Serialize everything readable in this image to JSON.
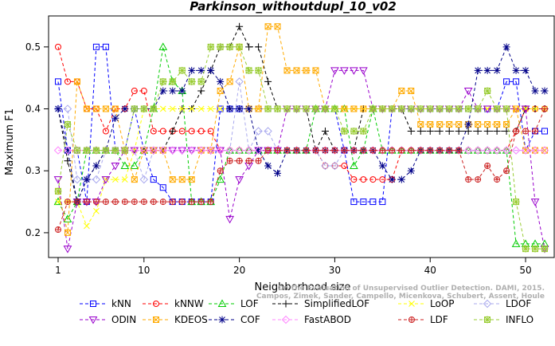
{
  "chart_data": {
    "type": "line",
    "title": "Parkinson_withoutdupl_10_v02",
    "xlabel": "Neighborhood size",
    "ylabel": "Maximum F1",
    "xlim": [
      0,
      53
    ],
    "ylim": [
      0.16,
      0.55
    ],
    "xticks": [
      1,
      10,
      20,
      30,
      40,
      50
    ],
    "yticks": [
      0.2,
      0.3,
      0.4,
      0.5
    ],
    "legend_position": "bottom",
    "watermark": [
      "Campos, Zimek, Sander, Campello, Micenkova, Schubert, Assent, Houle",
      "On the Evaluation of Unsupervised Outlier Detection. DAMI, 2015."
    ],
    "series": [
      {
        "name": "kNN",
        "color": "#0000ff",
        "marker": "square",
        "values": [
          0.444,
          0.333,
          0.333,
          0.25,
          0.5,
          0.5,
          0.333,
          0.333,
          0.4,
          0.333,
          0.286,
          0.273,
          0.25,
          0.25,
          0.25,
          0.25,
          0.25,
          0.4,
          0.4,
          0.4,
          0.4,
          0.4,
          0.4,
          0.4,
          0.4,
          0.4,
          0.4,
          0.4,
          0.4,
          0.4,
          0.333,
          0.25,
          0.25,
          0.25,
          0.25,
          0.4,
          0.4,
          0.4,
          0.4,
          0.4,
          0.4,
          0.4,
          0.4,
          0.4,
          0.4,
          0.4,
          0.4,
          0.444,
          0.444,
          0.333,
          0.364,
          0.364
        ]
      },
      {
        "name": "kNNW",
        "color": "#ff0000",
        "marker": "circle",
        "values": [
          0.5,
          0.444,
          0.444,
          0.4,
          0.4,
          0.364,
          0.4,
          0.4,
          0.429,
          0.429,
          0.364,
          0.364,
          0.364,
          0.364,
          0.364,
          0.364,
          0.364,
          0.333,
          0.333,
          0.333,
          0.333,
          0.333,
          0.333,
          0.333,
          0.333,
          0.333,
          0.333,
          0.333,
          0.308,
          0.308,
          0.308,
          0.286,
          0.286,
          0.286,
          0.286,
          0.286,
          0.333,
          0.333,
          0.333,
          0.333,
          0.333,
          0.333,
          0.333,
          0.333,
          0.333,
          0.333,
          0.333,
          0.333,
          0.364,
          0.4,
          0.4,
          0.4
        ]
      },
      {
        "name": "LOF",
        "color": "#00cc00",
        "marker": "triangle",
        "values": [
          0.25,
          0.222,
          0.25,
          0.333,
          0.333,
          0.333,
          0.333,
          0.308,
          0.308,
          0.333,
          0.4,
          0.5,
          0.444,
          0.429,
          0.25,
          0.25,
          0.25,
          0.286,
          0.333,
          0.333,
          0.333,
          0.333,
          0.333,
          0.333,
          0.333,
          0.333,
          0.333,
          0.4,
          0.4,
          0.4,
          0.4,
          0.308,
          0.333,
          0.4,
          0.333,
          0.333,
          0.333,
          0.333,
          0.333,
          0.333,
          0.333,
          0.333,
          0.333,
          0.333,
          0.333,
          0.333,
          0.333,
          0.333,
          0.182,
          0.182,
          0.182,
          0.182
        ]
      },
      {
        "name": "SimplifiedLOF",
        "color": "#000000",
        "marker": "plus",
        "values": [
          0.4,
          0.316,
          0.25,
          0.286,
          0.308,
          0.333,
          0.333,
          0.333,
          0.333,
          0.333,
          0.333,
          0.333,
          0.364,
          0.4,
          0.4,
          0.429,
          0.462,
          0.5,
          0.5,
          0.533,
          0.5,
          0.5,
          0.444,
          0.4,
          0.4,
          0.4,
          0.4,
          0.333,
          0.364,
          0.333,
          0.333,
          0.333,
          0.4,
          0.4,
          0.4,
          0.4,
          0.4,
          0.364,
          0.364,
          0.364,
          0.364,
          0.364,
          0.364,
          0.364,
          0.364,
          0.364,
          0.364,
          0.364,
          0.364,
          0.4,
          0.4,
          0.4
        ]
      },
      {
        "name": "LoOP",
        "color": "#ffff00",
        "marker": "x",
        "values": [
          0.25,
          0.25,
          0.25,
          0.211,
          0.235,
          0.286,
          0.286,
          0.286,
          0.333,
          0.4,
          0.4,
          0.4,
          0.4,
          0.4,
          0.4,
          0.4,
          0.4,
          0.4,
          0.4,
          0.4,
          0.4,
          0.4,
          0.4,
          0.4,
          0.4,
          0.4,
          0.4,
          0.4,
          0.4,
          0.4,
          0.4,
          0.4,
          0.4,
          0.4,
          0.4,
          0.4,
          0.4,
          0.4,
          0.4,
          0.4,
          0.4,
          0.4,
          0.4,
          0.4,
          0.4,
          0.4,
          0.4,
          0.4,
          0.4,
          0.4,
          0.4,
          0.4
        ]
      },
      {
        "name": "LDOF",
        "color": "#aaaaee",
        "marker": "diamond",
        "values": [
          0.4,
          0.4,
          0.286,
          0.286,
          0.286,
          0.333,
          0.333,
          0.333,
          0.333,
          0.286,
          0.333,
          0.333,
          0.333,
          0.333,
          0.333,
          0.333,
          0.333,
          0.333,
          0.333,
          0.444,
          0.333,
          0.364,
          0.364,
          0.333,
          0.333,
          0.333,
          0.333,
          0.333,
          0.308,
          0.308,
          0.333,
          0.333,
          0.333,
          0.333,
          0.333,
          0.333,
          0.333,
          0.333,
          0.333,
          0.333,
          0.333,
          0.333,
          0.333,
          0.333,
          0.333,
          0.333,
          0.333,
          0.333,
          0.333,
          0.333,
          0.333,
          0.333
        ]
      },
      {
        "name": "ODIN",
        "color": "#9900cc",
        "marker": "triangle-down",
        "values": [
          0.286,
          0.174,
          0.25,
          0.25,
          0.25,
          0.286,
          0.308,
          0.333,
          0.333,
          0.333,
          0.333,
          0.333,
          0.333,
          0.333,
          0.333,
          0.333,
          0.333,
          0.333,
          0.222,
          0.286,
          0.308,
          0.333,
          0.333,
          0.333,
          0.4,
          0.4,
          0.4,
          0.4,
          0.4,
          0.462,
          0.462,
          0.462,
          0.462,
          0.4,
          0.4,
          0.4,
          0.4,
          0.4,
          0.4,
          0.4,
          0.4,
          0.4,
          0.4,
          0.429,
          0.4,
          0.4,
          0.4,
          0.4,
          0.4,
          0.4,
          0.25,
          0.174
        ]
      },
      {
        "name": "KDEOS",
        "color": "#ffaa00",
        "marker": "square-x",
        "values": [
          0.267,
          0.2,
          0.444,
          0.4,
          0.4,
          0.4,
          0.4,
          0.333,
          0.286,
          0.333,
          0.333,
          0.333,
          0.286,
          0.286,
          0.286,
          0.333,
          0.333,
          0.429,
          0.444,
          0.5,
          0.4,
          0.4,
          0.533,
          0.533,
          0.462,
          0.462,
          0.462,
          0.462,
          0.4,
          0.4,
          0.4,
          0.4,
          0.4,
          0.4,
          0.4,
          0.4,
          0.429,
          0.429,
          0.375,
          0.375,
          0.375,
          0.375,
          0.375,
          0.375,
          0.375,
          0.375,
          0.375,
          0.375,
          0.4,
          0.333,
          0.333,
          0.333
        ]
      },
      {
        "name": "COF",
        "color": "#000088",
        "marker": "asterisk",
        "values": [
          0.4,
          0.333,
          0.25,
          0.286,
          0.308,
          0.333,
          0.385,
          0.4,
          0.4,
          0.4,
          0.4,
          0.429,
          0.429,
          0.429,
          0.462,
          0.462,
          0.462,
          0.444,
          0.4,
          0.4,
          0.4,
          0.333,
          0.308,
          0.296,
          0.333,
          0.333,
          0.333,
          0.333,
          0.333,
          0.333,
          0.333,
          0.333,
          0.333,
          0.333,
          0.308,
          0.286,
          0.286,
          0.3,
          0.333,
          0.333,
          0.333,
          0.333,
          0.333,
          0.375,
          0.462,
          0.462,
          0.462,
          0.5,
          0.462,
          0.462,
          0.429,
          0.429
        ]
      },
      {
        "name": "FastABOD",
        "color": "#ff88ff",
        "marker": "diamond",
        "values": [
          0.333,
          0.333,
          0.333,
          0.333,
          0.333,
          0.333,
          0.333,
          0.333,
          0.333,
          0.333,
          0.333,
          0.333,
          0.333,
          0.333,
          0.333,
          0.333,
          0.333,
          0.333,
          0.333,
          0.333,
          0.333,
          0.333,
          0.333,
          0.333,
          0.333,
          0.333,
          0.333,
          0.333,
          0.333,
          0.333,
          0.333,
          0.333,
          0.333,
          0.333,
          0.333,
          0.333,
          0.333,
          0.333,
          0.333,
          0.333,
          0.333,
          0.333,
          0.333,
          0.333,
          0.333,
          0.333,
          0.333,
          0.333,
          0.333,
          0.333,
          0.333,
          0.333
        ]
      },
      {
        "name": "LDF",
        "color": "#cc2222",
        "marker": "circle-plus",
        "values": [
          0.205,
          0.25,
          0.25,
          0.25,
          0.25,
          0.25,
          0.25,
          0.25,
          0.25,
          0.25,
          0.25,
          0.25,
          0.25,
          0.25,
          0.25,
          0.25,
          0.25,
          0.3,
          0.316,
          0.316,
          0.316,
          0.316,
          0.333,
          0.333,
          0.333,
          0.333,
          0.333,
          0.333,
          0.333,
          0.333,
          0.333,
          0.333,
          0.333,
          0.333,
          0.333,
          0.333,
          0.333,
          0.333,
          0.333,
          0.333,
          0.333,
          0.333,
          0.333,
          0.286,
          0.286,
          0.308,
          0.286,
          0.3,
          0.364,
          0.364,
          0.364,
          0.4
        ]
      },
      {
        "name": "INFLO",
        "color": "#99cc33",
        "marker": "star",
        "values": [
          0.267,
          0.375,
          0.333,
          0.333,
          0.333,
          0.333,
          0.333,
          0.333,
          0.4,
          0.4,
          0.4,
          0.444,
          0.444,
          0.462,
          0.444,
          0.444,
          0.5,
          0.5,
          0.5,
          0.5,
          0.462,
          0.462,
          0.4,
          0.4,
          0.4,
          0.4,
          0.4,
          0.4,
          0.4,
          0.4,
          0.364,
          0.364,
          0.364,
          0.4,
          0.4,
          0.4,
          0.4,
          0.4,
          0.4,
          0.4,
          0.4,
          0.4,
          0.4,
          0.4,
          0.4,
          0.429,
          0.4,
          0.4,
          0.25,
          0.174,
          0.174,
          0.174
        ]
      }
    ]
  }
}
